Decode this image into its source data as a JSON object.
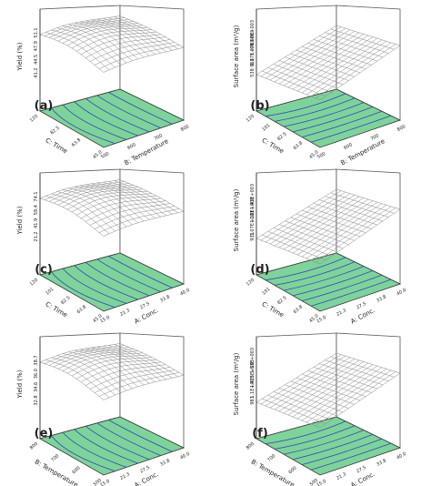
{
  "chart_data": [
    {
      "type": "surface",
      "panel_label": "(a)",
      "zlabel": "Yield (%)",
      "ztick_labels": [
        "51.1",
        "47.9",
        "44.5",
        "41.2"
      ],
      "xlabel": "C: Time",
      "xtick_labels": [
        "120",
        "82.5",
        "63.8",
        "45.0"
      ],
      "ylabel": "B: Temperature",
      "ytick_labels": [
        "500",
        "600",
        "700",
        "800"
      ],
      "surface_shape": "dome"
    },
    {
      "type": "surface",
      "panel_label": "(b)",
      "zlabel": "Surface area (m²/g)",
      "ztick_labels": [
        "1.58E+003",
        "1.37E+003",
        "1.17E+003",
        "968",
        "538"
      ],
      "xlabel": "C: Time",
      "xtick_labels": [
        "120",
        "101",
        "82.5",
        "63.8",
        "45.0"
      ],
      "ylabel": "B: Temperature",
      "ytick_labels": [
        "500",
        "600",
        "700",
        "800"
      ],
      "surface_shape": "plane"
    },
    {
      "type": "surface",
      "panel_label": "(c)",
      "zlabel": "Yield (%)",
      "ztick_labels": [
        "74.1",
        "59.4",
        "41.9",
        "21.2"
      ],
      "xlabel": "C: Time",
      "xtick_labels": [
        "120",
        "101",
        "82.5",
        "63.8",
        "45.0"
      ],
      "ylabel": "A: Conc.",
      "ytick_labels": [
        "15.0",
        "21.3",
        "27.5",
        "33.8",
        "40.0"
      ],
      "surface_shape": "dome"
    },
    {
      "type": "surface",
      "panel_label": "(d)",
      "zlabel": "Surface area (m²/g)",
      "ztick_labels": [
        "1.43E+003",
        "1.18E+003",
        "1.07E+003",
        "931"
      ],
      "xlabel": "C: Time",
      "xtick_labels": [
        "120",
        "101",
        "82.5",
        "63.8",
        "45.0"
      ],
      "ylabel": "A: Conc.",
      "ytick_labels": [
        "15.0",
        "21.3",
        "27.5",
        "33.8",
        "40.0"
      ],
      "surface_shape": "plane"
    },
    {
      "type": "surface",
      "panel_label": "(e)",
      "zlabel": "Yield (%)",
      "ztick_labels": [
        "38.7",
        "36.0",
        "34.6",
        "32.8"
      ],
      "xlabel": "B: Temperature",
      "xtick_labels": [
        "800",
        "700",
        "600",
        "500"
      ],
      "ylabel": "A: Conc.",
      "ytick_labels": [
        "15.0",
        "21.3",
        "27.5",
        "33.8",
        "40.0"
      ],
      "surface_shape": "dome"
    },
    {
      "type": "surface",
      "panel_label": "(f)",
      "zlabel": "Surface area (m²/g)",
      "ztick_labels": [
        "1.53E+003",
        "1.425E+003",
        "1.1E+003",
        "983"
      ],
      "xlabel": "B: Temperature",
      "xtick_labels": [
        "800",
        "700",
        "600",
        "500"
      ],
      "ylabel": "A: Conc.",
      "ytick_labels": [
        "15.0",
        "21.3",
        "27.5",
        "33.8",
        "40.0"
      ],
      "surface_shape": "plane"
    }
  ]
}
